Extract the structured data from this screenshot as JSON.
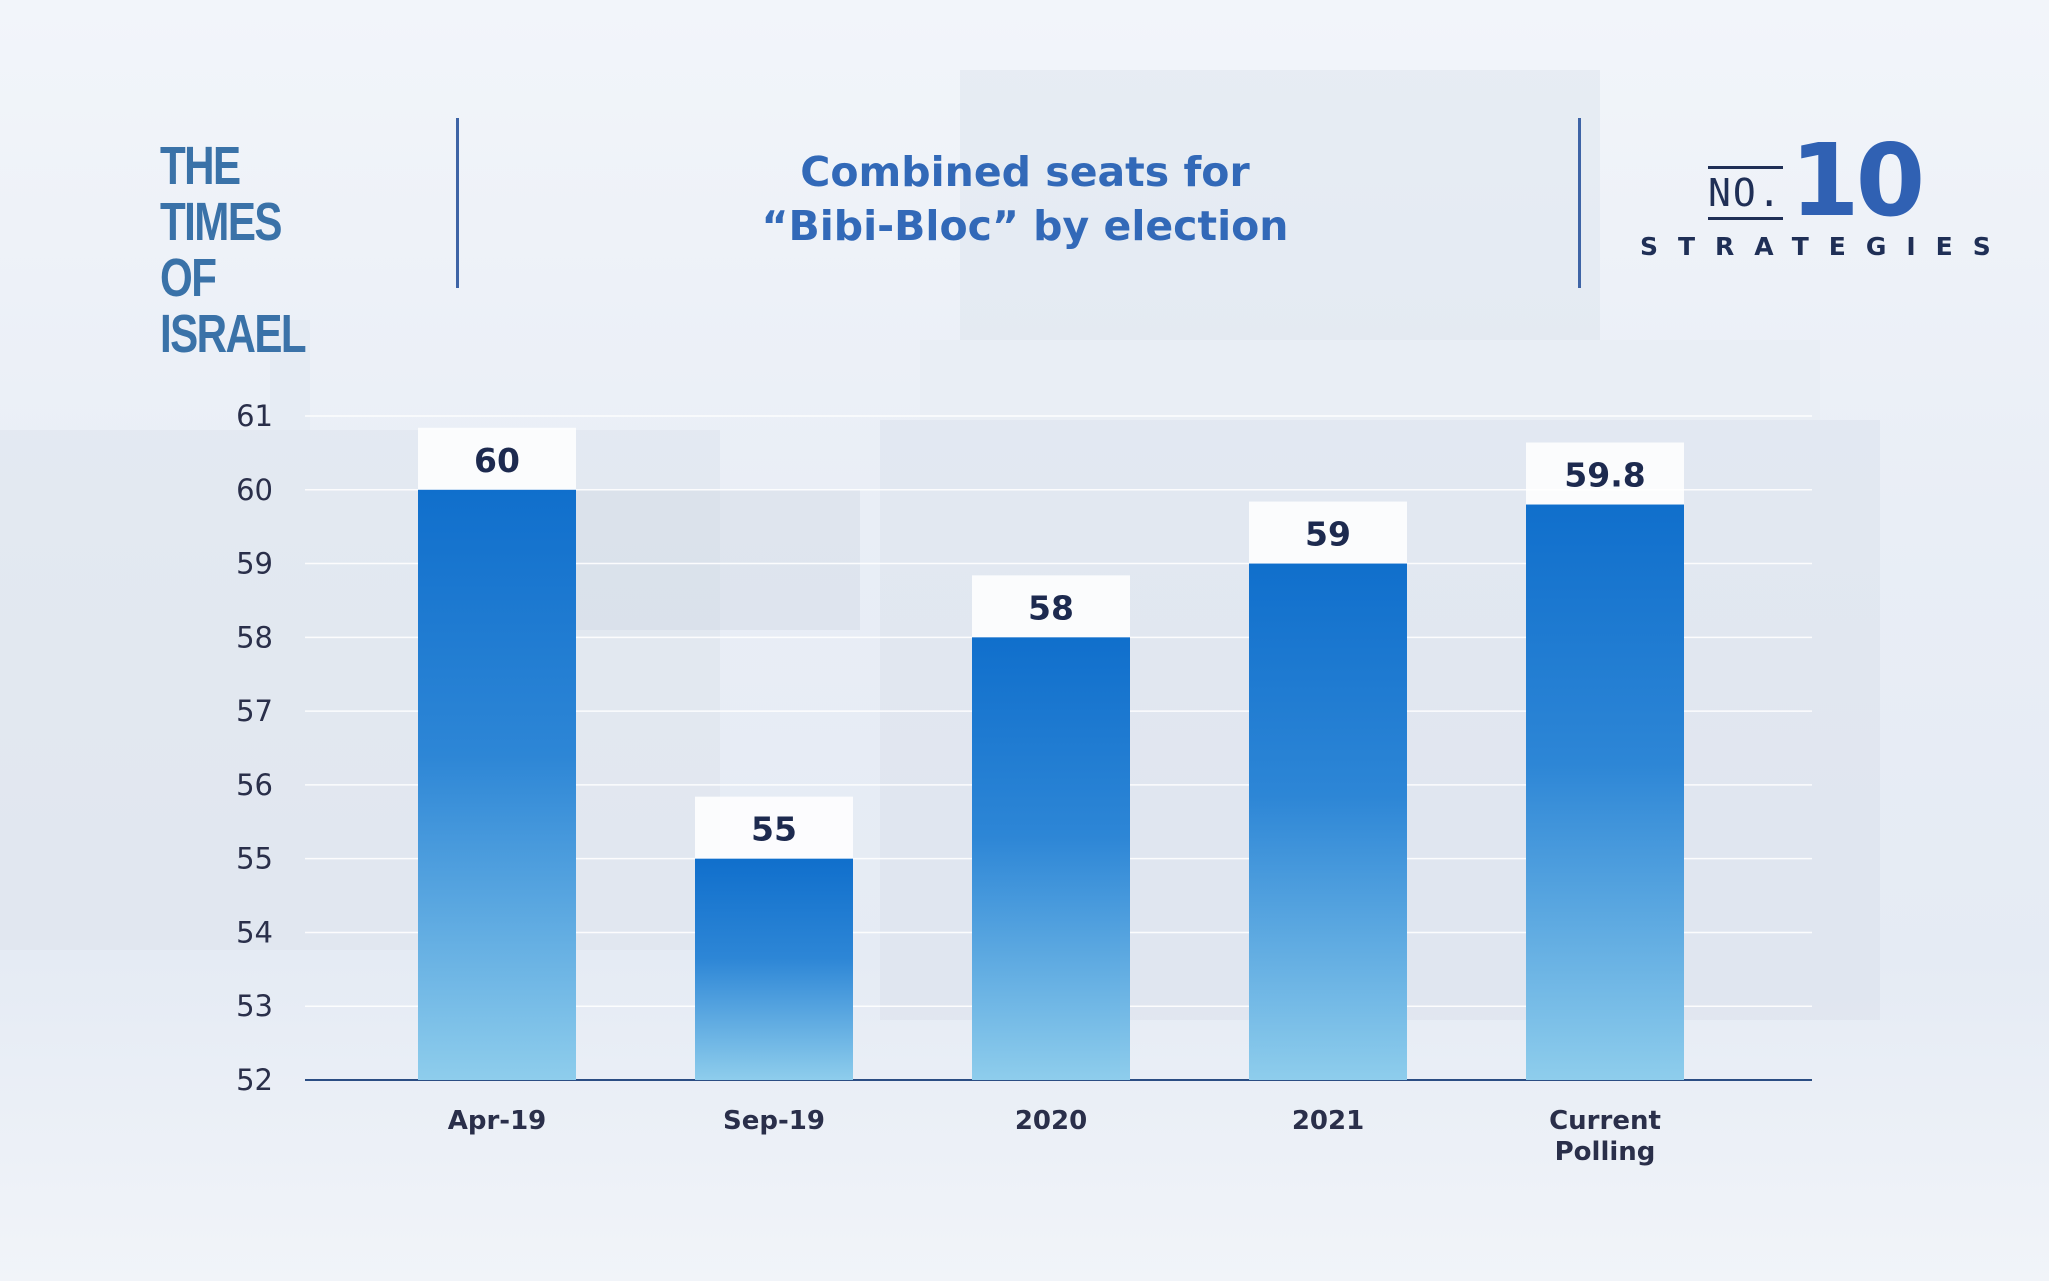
{
  "header": {
    "logo_line1": "THE TIMES",
    "logo_line2": "OF ISRAEL",
    "title_line1": "Combined seats for",
    "title_line2": "“Bibi-Bloc” by election",
    "brand_no": "NO.",
    "brand_number": "10",
    "brand_sub": "STRATEGIES"
  },
  "colors": {
    "title": "#3269b8",
    "logo": "#3a72a8",
    "bar_top": "#106fcc",
    "bar_bottom": "#8ecdec",
    "text_dark": "#1d2a4f"
  },
  "chart_data": {
    "type": "bar",
    "title": "Combined seats for “Bibi-Bloc” by election",
    "categories": [
      [
        "Apr-19"
      ],
      [
        "Sep-19"
      ],
      [
        "2020"
      ],
      [
        "2021"
      ],
      [
        "Current",
        "Polling"
      ]
    ],
    "values": [
      60,
      55,
      58,
      59,
      59.8
    ],
    "data_labels": [
      "60",
      "55",
      "58",
      "59",
      "59.8"
    ],
    "ylim": [
      52,
      61
    ],
    "yticks": [
      "52",
      "53",
      "54",
      "55",
      "56",
      "57",
      "58",
      "59",
      "60",
      "61"
    ],
    "grid": true,
    "xlabel": "",
    "ylabel": ""
  }
}
